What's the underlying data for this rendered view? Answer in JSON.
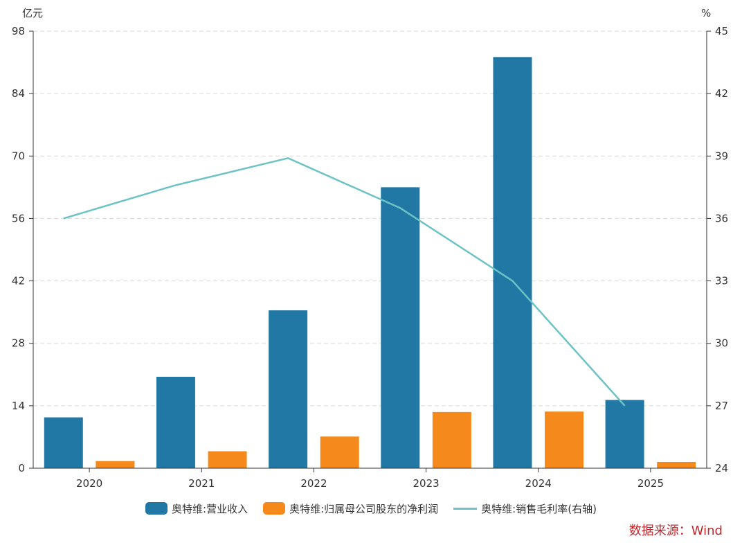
{
  "chart_data": {
    "type": "bar",
    "categories": [
      "2020",
      "2021",
      "2022",
      "2023",
      "2024",
      "2025"
    ],
    "series": [
      {
        "name": "奥特维:营业收入",
        "type": "bar",
        "axis": "left",
        "color": "#2278a4",
        "values": [
          11.4,
          20.5,
          35.4,
          63.0,
          92.2,
          15.3
        ]
      },
      {
        "name": "奥特维:归属母公司股东的净利润",
        "type": "bar",
        "axis": "left",
        "color": "#f5891b",
        "values": [
          1.6,
          3.8,
          7.1,
          12.6,
          12.7,
          1.4
        ]
      },
      {
        "name": "奥特维:销售毛利率(右轴)",
        "type": "line",
        "axis": "right",
        "color": "#6cc3c5",
        "values": [
          36.0,
          37.6,
          38.9,
          36.5,
          33.0,
          27.0
        ]
      }
    ],
    "left_axis": {
      "unit": "亿元",
      "min": 0,
      "max": 98,
      "ticks": [
        0,
        14,
        28,
        42,
        56,
        70,
        84,
        98
      ]
    },
    "right_axis": {
      "unit": "%",
      "min": 24,
      "max": 45,
      "ticks": [
        24,
        27,
        30,
        33,
        36,
        39,
        42,
        45
      ]
    },
    "grid": true,
    "legend_position": "bottom"
  },
  "source": "数据来源：Wind"
}
